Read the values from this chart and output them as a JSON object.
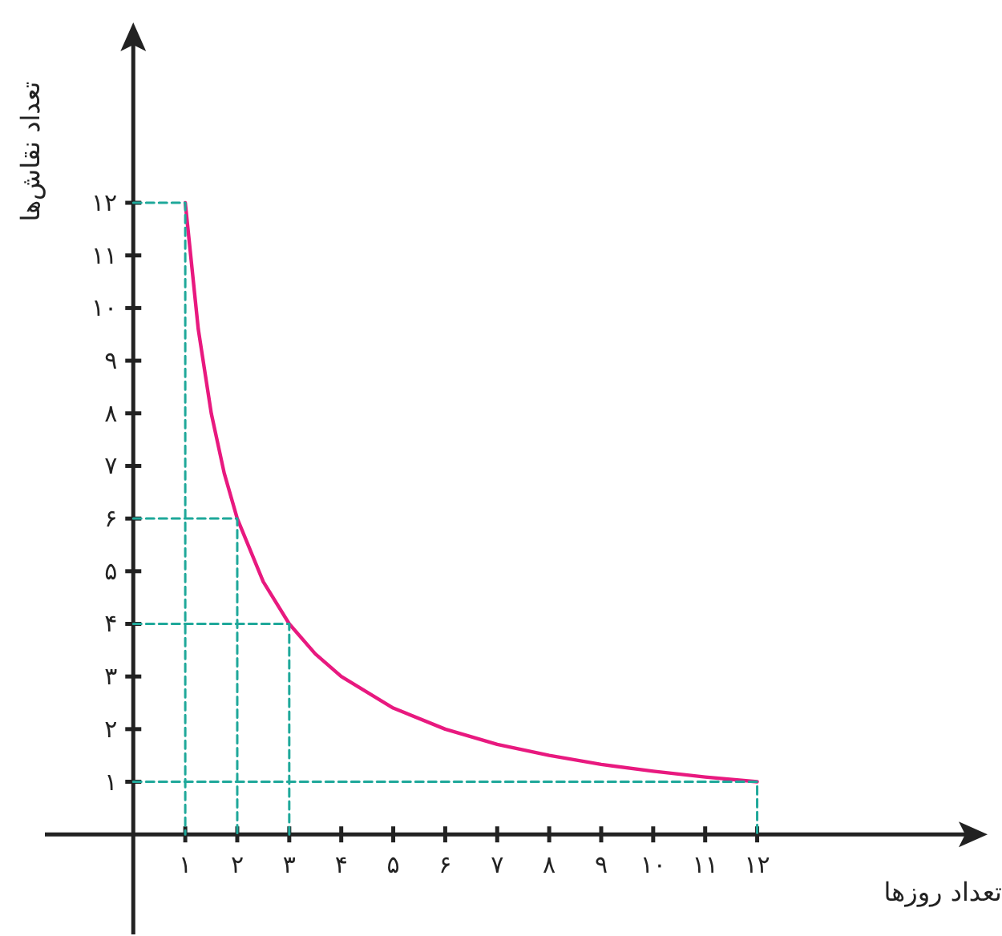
{
  "chart_data": {
    "type": "line",
    "xlabel": "تعداد روزها",
    "ylabel": "تعداد نقاش‌ها",
    "xlim": [
      -1.7,
      16
    ],
    "ylim": [
      -1.9,
      15
    ],
    "xticks": [
      {
        "value": 1,
        "label": "۱"
      },
      {
        "value": 2,
        "label": "۲"
      },
      {
        "value": 3,
        "label": "۳"
      },
      {
        "value": 4,
        "label": "۴"
      },
      {
        "value": 5,
        "label": "۵"
      },
      {
        "value": 6,
        "label": "۶"
      },
      {
        "value": 7,
        "label": "۷"
      },
      {
        "value": 8,
        "label": "۸"
      },
      {
        "value": 9,
        "label": "۹"
      },
      {
        "value": 10,
        "label": "۱۰"
      },
      {
        "value": 11,
        "label": "۱۱"
      },
      {
        "value": 12,
        "label": "۱۲"
      }
    ],
    "yticks": [
      {
        "value": 1,
        "label": "۱"
      },
      {
        "value": 2,
        "label": "۲"
      },
      {
        "value": 3,
        "label": "۳"
      },
      {
        "value": 4,
        "label": "۴"
      },
      {
        "value": 5,
        "label": "۵"
      },
      {
        "value": 6,
        "label": "۶"
      },
      {
        "value": 7,
        "label": "۷"
      },
      {
        "value": 8,
        "label": "۸"
      },
      {
        "value": 9,
        "label": "۹"
      },
      {
        "value": 10,
        "label": "۱۰"
      },
      {
        "value": 11,
        "label": "۱۱"
      },
      {
        "value": 12,
        "label": "۱۲"
      }
    ],
    "marker": "none",
    "grid": false,
    "series": [
      {
        "color": "#e8197f",
        "line_style": "solid",
        "x": [
          1,
          1.25,
          1.5,
          1.75,
          2,
          2.5,
          3,
          3.5,
          4,
          5,
          6,
          7,
          8,
          9,
          10,
          11,
          12
        ],
        "values": [
          12,
          9.6,
          8,
          6.86,
          6,
          4.8,
          4,
          3.43,
          3,
          2.4,
          2,
          1.71,
          1.5,
          1.33,
          1.2,
          1.09,
          1
        ]
      },
      {
        "color": "#1fa89a",
        "line_style": "dashed",
        "x": [
          0,
          1,
          1
        ],
        "values": [
          12,
          12,
          0
        ]
      },
      {
        "color": "#1fa89a",
        "line_style": "dashed",
        "x": [
          0,
          2,
          2
        ],
        "values": [
          6,
          6,
          0
        ]
      },
      {
        "color": "#1fa89a",
        "line_style": "dashed",
        "x": [
          0,
          3,
          3
        ],
        "values": [
          4,
          4,
          0
        ]
      },
      {
        "color": "#1fa89a",
        "line_style": "dashed",
        "x": [
          0,
          12,
          12
        ],
        "values": [
          1,
          1,
          0
        ]
      }
    ]
  }
}
